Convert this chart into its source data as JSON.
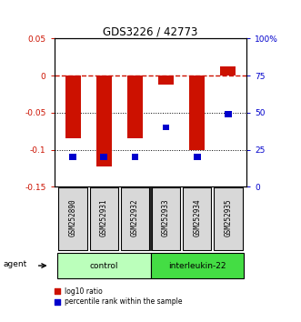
{
  "title": "GDS3226 / 42773",
  "samples": [
    "GSM252890",
    "GSM252931",
    "GSM252932",
    "GSM252933",
    "GSM252934",
    "GSM252935"
  ],
  "log10_ratio": [
    -0.085,
    -0.122,
    -0.085,
    -0.012,
    -0.1,
    0.013
  ],
  "percentile_rank": [
    20.0,
    20.0,
    20.0,
    40.0,
    20.0,
    49.0
  ],
  "ylim_left": [
    -0.15,
    0.05
  ],
  "ylim_right": [
    0,
    100
  ],
  "groups": [
    {
      "label": "control",
      "color": "#bbffbb"
    },
    {
      "label": "interleukin-22",
      "color": "#44dd44"
    }
  ],
  "bar_color": "#cc1100",
  "dot_color": "#0000cc",
  "hline_color": "#cc1100",
  "dotted_lines": [
    -0.05,
    -0.1
  ],
  "right_ticks": [
    0,
    25,
    50,
    75,
    100
  ],
  "right_tick_labels": [
    "0",
    "25",
    "50",
    "75",
    "100%"
  ],
  "left_ticks": [
    -0.15,
    -0.1,
    -0.05,
    0.0,
    0.05
  ],
  "left_tick_labels": [
    "-0.15",
    "-0.1",
    "-0.05",
    "0",
    "0.05"
  ],
  "bar_width": 0.5,
  "legend_items": [
    {
      "color": "#cc1100",
      "label": "log10 ratio"
    },
    {
      "color": "#0000cc",
      "label": "percentile rank within the sample"
    }
  ]
}
